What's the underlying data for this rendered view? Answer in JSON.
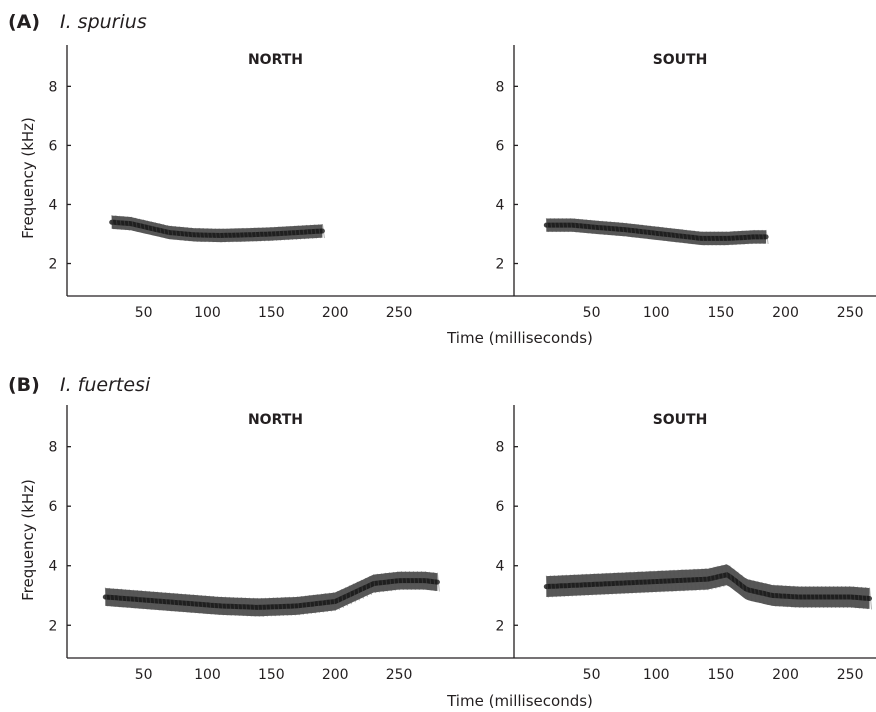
{
  "figure": {
    "panels": [
      {
        "label": "(A)",
        "species": "I. spurius",
        "ylabel": "Frequency (kHz)",
        "xlabel": "Time (milliseconds)"
      },
      {
        "label": "(B)",
        "species": "I. fuertesi",
        "ylabel": "Frequency (kHz)",
        "xlabel": "Time (milliseconds)"
      }
    ]
  },
  "chart_data": [
    {
      "type": "line",
      "panel": "(A)",
      "title": "NORTH",
      "xlabel": "Time (milliseconds)",
      "ylabel": "Frequency (kHz)",
      "xticks": [
        50,
        100,
        150,
        200,
        250
      ],
      "yticks": [
        2,
        4,
        6,
        8
      ],
      "xlim": [
        -10,
        340
      ],
      "ylim": [
        0.9,
        9.4
      ],
      "series": [
        {
          "x": [
            25,
            40,
            55,
            70,
            90,
            110,
            130,
            150,
            170,
            190
          ],
          "y": [
            3.4,
            3.35,
            3.2,
            3.05,
            2.97,
            2.95,
            2.97,
            3.0,
            3.05,
            3.1
          ],
          "band_kHz": 0.45
        }
      ]
    },
    {
      "type": "line",
      "panel": "(A)",
      "title": "SOUTH",
      "xlabel": "Time (milliseconds)",
      "ylabel": "Frequency (kHz)",
      "xticks": [
        50,
        100,
        150,
        200,
        250
      ],
      "yticks": [
        2,
        4,
        6,
        8
      ],
      "xlim": [
        -10,
        270
      ],
      "ylim": [
        0.9,
        9.4
      ],
      "series": [
        {
          "x": [
            15,
            35,
            55,
            75,
            95,
            115,
            135,
            155,
            175,
            185
          ],
          "y": [
            3.3,
            3.3,
            3.22,
            3.15,
            3.05,
            2.95,
            2.85,
            2.85,
            2.9,
            2.9
          ],
          "band_kHz": 0.45
        }
      ]
    },
    {
      "type": "line",
      "panel": "(B)",
      "title": "NORTH",
      "xlabel": "Time (milliseconds)",
      "ylabel": "Frequency (kHz)",
      "xticks": [
        50,
        100,
        150,
        200,
        250
      ],
      "yticks": [
        2,
        4,
        6,
        8
      ],
      "xlim": [
        -10,
        340
      ],
      "ylim": [
        0.9,
        9.4
      ],
      "series": [
        {
          "x": [
            20,
            50,
            80,
            110,
            140,
            170,
            200,
            215,
            230,
            250,
            270,
            280
          ],
          "y": [
            2.95,
            2.85,
            2.75,
            2.65,
            2.6,
            2.65,
            2.8,
            3.1,
            3.4,
            3.5,
            3.5,
            3.45
          ],
          "band_kHz": 0.6
        }
      ]
    },
    {
      "type": "line",
      "panel": "(B)",
      "title": "SOUTH",
      "xlabel": "Time (milliseconds)",
      "ylabel": "Frequency (kHz)",
      "xticks": [
        50,
        100,
        150,
        200,
        250
      ],
      "yticks": [
        2,
        4,
        6,
        8
      ],
      "xlim": [
        -10,
        270
      ],
      "ylim": [
        0.9,
        9.4
      ],
      "series": [
        {
          "x": [
            15,
            40,
            65,
            90,
            115,
            140,
            155,
            170,
            190,
            210,
            230,
            250,
            265
          ],
          "y": [
            3.3,
            3.35,
            3.4,
            3.45,
            3.5,
            3.55,
            3.7,
            3.2,
            3.0,
            2.95,
            2.95,
            2.95,
            2.9
          ],
          "band_kHz": 0.7
        }
      ]
    }
  ]
}
